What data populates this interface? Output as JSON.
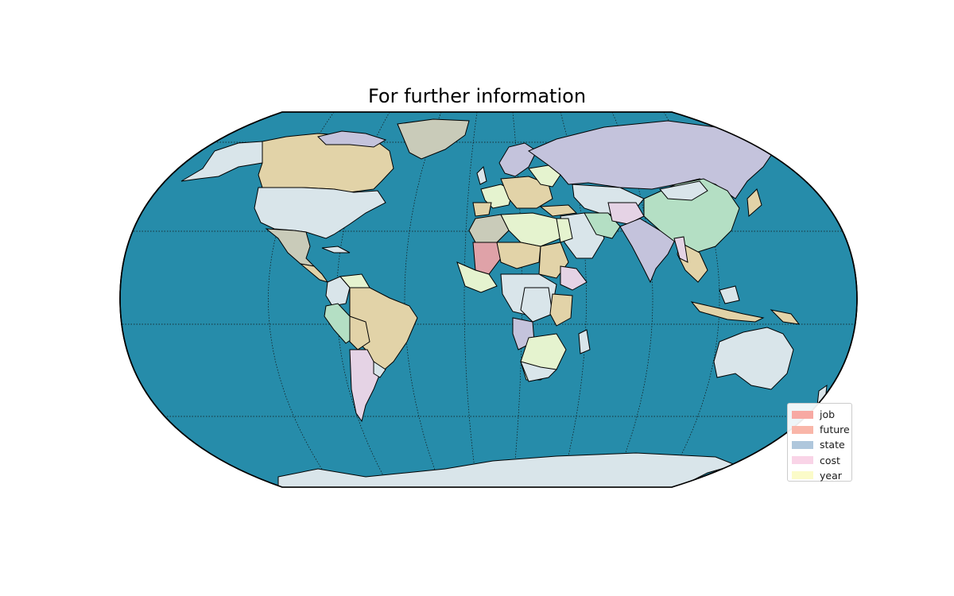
{
  "map": {
    "title": "For further information",
    "projection": "robinson",
    "ocean_color": "#268caa",
    "graticule": "dotted",
    "country_border_color": "#000000",
    "land_palette": [
      "#d9e5ea",
      "#e2d3a8",
      "#c4c3dc",
      "#b4dfc4",
      "#e5d3e5",
      "#e5f3cf",
      "#c9cbb9",
      "#a9c3da",
      "#dfa2a8"
    ]
  },
  "legend": {
    "position": "lower-right",
    "items": [
      {
        "label": "job",
        "color": "#f7a9a3"
      },
      {
        "label": "future",
        "color": "#f9b6a9"
      },
      {
        "label": "state",
        "color": "#afc7dc"
      },
      {
        "label": "cost",
        "color": "#f9d4e7"
      },
      {
        "label": "year",
        "color": "#fbfbc9"
      }
    ]
  }
}
